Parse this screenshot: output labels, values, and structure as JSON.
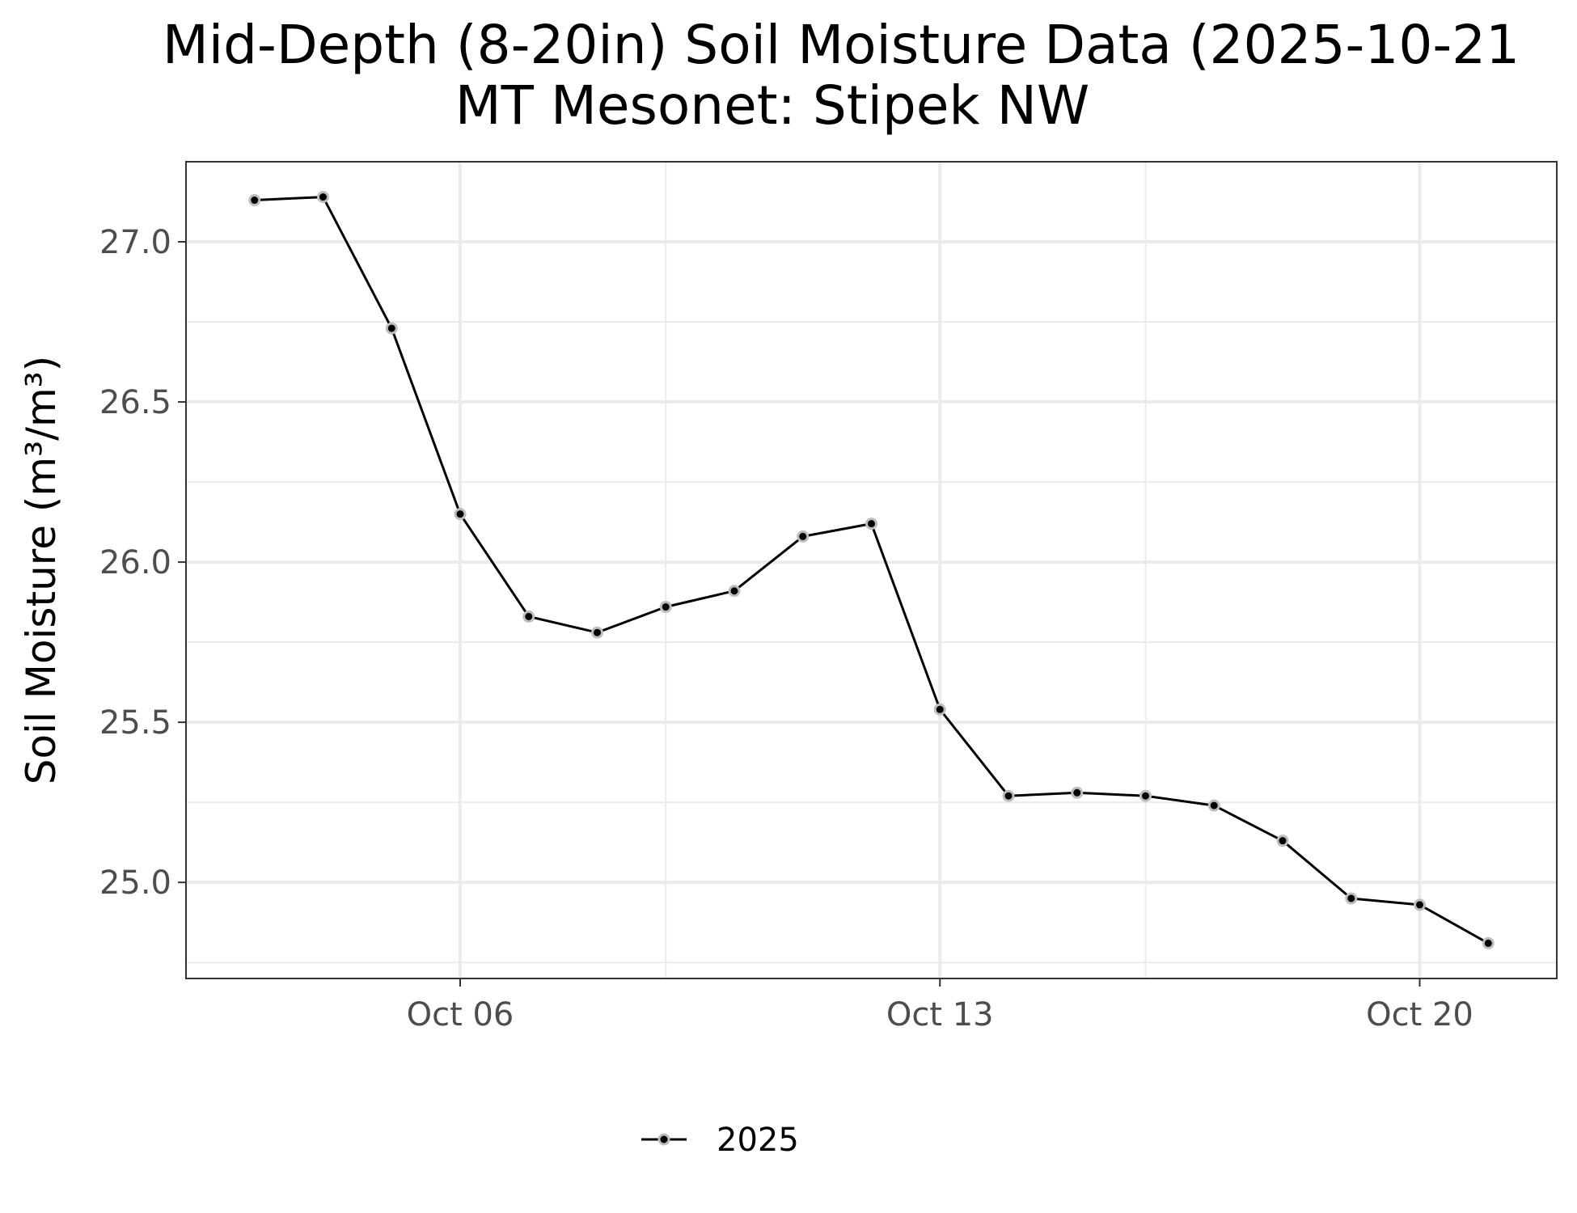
{
  "chart_data": {
    "type": "line",
    "title": "Mid-Depth (8-20in) Soil Moisture Data (2025-10-21",
    "subtitle": "MT Mesonet: Stipek NW",
    "xlabel": "",
    "ylabel": "Soil Moisture (m³/m³)",
    "x_type": "date",
    "xlim": [
      "2025-10-02",
      "2025-10-22"
    ],
    "ylim": [
      24.7,
      27.25
    ],
    "x_ticks": [
      {
        "date": "2025-10-06",
        "label": "Oct 06"
      },
      {
        "date": "2025-10-13",
        "label": "Oct 13"
      },
      {
        "date": "2025-10-20",
        "label": "Oct 20"
      }
    ],
    "x_minor_ticks": [
      "2025-10-02",
      "2025-10-09",
      "2025-10-16"
    ],
    "y_ticks": [
      {
        "value": 25.0,
        "label": "25.0"
      },
      {
        "value": 25.5,
        "label": "25.5"
      },
      {
        "value": 26.0,
        "label": "26.0"
      },
      {
        "value": 26.5,
        "label": "26.5"
      },
      {
        "value": 27.0,
        "label": "27.0"
      }
    ],
    "y_minor_ticks": [
      24.75,
      25.25,
      25.75,
      26.25,
      26.75
    ],
    "grid": true,
    "legend_position": "bottom",
    "series": [
      {
        "name": "2025",
        "color": "#000000",
        "x": [
          "2025-10-03",
          "2025-10-04",
          "2025-10-05",
          "2025-10-06",
          "2025-10-07",
          "2025-10-08",
          "2025-10-09",
          "2025-10-10",
          "2025-10-11",
          "2025-10-12",
          "2025-10-13",
          "2025-10-14",
          "2025-10-15",
          "2025-10-16",
          "2025-10-17",
          "2025-10-18",
          "2025-10-19",
          "2025-10-20",
          "2025-10-21"
        ],
        "y": [
          27.13,
          27.14,
          26.73,
          26.15,
          25.83,
          25.78,
          25.86,
          25.91,
          26.08,
          26.12,
          25.54,
          25.27,
          25.28,
          25.27,
          25.24,
          25.13,
          24.95,
          24.93,
          24.81
        ]
      }
    ]
  }
}
